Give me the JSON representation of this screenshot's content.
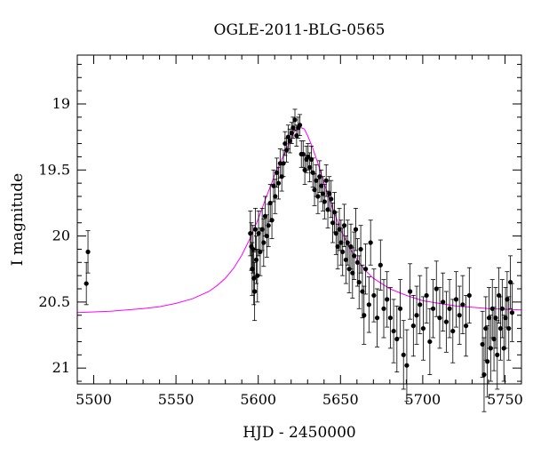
{
  "chart_data": {
    "type": "scatter",
    "title": "OGLE-2011-BLG-0565",
    "xlabel": "HJD - 2450000",
    "ylabel": "I magnitude",
    "xlim": [
      5490,
      5760
    ],
    "ylim": [
      21.12,
      18.63
    ],
    "y_inverted": true,
    "x_major_ticks": [
      5500,
      5550,
      5600,
      5650,
      5700,
      5750
    ],
    "y_major_ticks": [
      19,
      19.5,
      20,
      20.5,
      21
    ],
    "x_tick_labels": [
      "5500",
      "5550",
      "5600",
      "5650",
      "5700",
      "5750"
    ],
    "y_tick_labels": [
      "19",
      "19.5",
      "20",
      "20.5",
      "21"
    ],
    "grid": false,
    "series": [
      {
        "kind": "points_with_errorbars",
        "color": "#000000",
        "points": [
          [
            5495.5,
            20.36,
            0.16
          ],
          [
            5496.5,
            20.12,
            0.16
          ],
          [
            5595.2,
            19.98,
            0.17
          ],
          [
            5595.8,
            20.08,
            0.18
          ],
          [
            5596.3,
            20.25,
            0.2
          ],
          [
            5596.8,
            20.1,
            0.18
          ],
          [
            5597.3,
            20.32,
            0.2
          ],
          [
            5597.8,
            20.42,
            0.22
          ],
          [
            5598.3,
            19.95,
            0.16
          ],
          [
            5598.8,
            20.18,
            0.18
          ],
          [
            5599.5,
            20.3,
            0.2
          ],
          [
            5600.2,
            19.98,
            0.17
          ],
          [
            5601.2,
            20.12,
            0.18
          ],
          [
            5602.4,
            19.95,
            0.16
          ],
          [
            5603.3,
            20.05,
            0.18
          ],
          [
            5604.2,
            19.85,
            0.15
          ],
          [
            5605.2,
            20.0,
            0.16
          ],
          [
            5606.2,
            19.92,
            0.16
          ],
          [
            5607.3,
            19.75,
            0.14
          ],
          [
            5608.3,
            19.88,
            0.14
          ],
          [
            5609.3,
            19.62,
            0.12
          ],
          [
            5610.3,
            19.7,
            0.13
          ],
          [
            5611.3,
            19.52,
            0.11
          ],
          [
            5612.3,
            19.6,
            0.12
          ],
          [
            5613.3,
            19.45,
            0.11
          ],
          [
            5614.3,
            19.55,
            0.11
          ],
          [
            5615.3,
            19.45,
            0.1
          ],
          [
            5616.3,
            19.3,
            0.09
          ],
          [
            5617.2,
            19.35,
            0.09
          ],
          [
            5618.2,
            19.25,
            0.09
          ],
          [
            5619.2,
            19.28,
            0.09
          ],
          [
            5620.3,
            19.22,
            0.08
          ],
          [
            5621.2,
            19.18,
            0.08
          ],
          [
            5622.3,
            19.12,
            0.08
          ],
          [
            5623.3,
            19.24,
            0.08
          ],
          [
            5624.3,
            19.18,
            0.08
          ],
          [
            5625.3,
            19.16,
            0.08
          ],
          [
            5626.2,
            19.38,
            0.1
          ],
          [
            5627.3,
            19.38,
            0.1
          ],
          [
            5628.3,
            19.5,
            0.11
          ],
          [
            5629.3,
            19.42,
            0.1
          ],
          [
            5630.3,
            19.4,
            0.1
          ],
          [
            5631.3,
            19.48,
            0.11
          ],
          [
            5632.3,
            19.42,
            0.1
          ],
          [
            5633.2,
            19.52,
            0.11
          ],
          [
            5634.2,
            19.65,
            0.12
          ],
          [
            5635.2,
            19.58,
            0.12
          ],
          [
            5636.3,
            19.7,
            0.13
          ],
          [
            5637.3,
            19.55,
            0.12
          ],
          [
            5638.3,
            19.62,
            0.12
          ],
          [
            5639.3,
            19.68,
            0.13
          ],
          [
            5640.3,
            19.74,
            0.13
          ],
          [
            5641.3,
            19.58,
            0.12
          ],
          [
            5642.3,
            19.8,
            0.14
          ],
          [
            5643.2,
            19.68,
            0.13
          ],
          [
            5644.3,
            19.72,
            0.14
          ],
          [
            5645.3,
            19.9,
            0.15
          ],
          [
            5646.3,
            19.82,
            0.15
          ],
          [
            5647.3,
            19.98,
            0.16
          ],
          [
            5648.3,
            20.08,
            0.17
          ],
          [
            5649.3,
            19.95,
            0.16
          ],
          [
            5650.3,
            20.05,
            0.17
          ],
          [
            5651.3,
            20.12,
            0.18
          ],
          [
            5652.3,
            19.92,
            0.16
          ],
          [
            5653.3,
            20.18,
            0.18
          ],
          [
            5654.3,
            20.05,
            0.17
          ],
          [
            5655.3,
            20.25,
            0.18
          ],
          [
            5656.3,
            20.08,
            0.17
          ],
          [
            5657.3,
            20.28,
            0.19
          ],
          [
            5658.3,
            20.15,
            0.18
          ],
          [
            5659.3,
            19.95,
            0.16
          ],
          [
            5660.3,
            20.2,
            0.18
          ],
          [
            5661.3,
            20.35,
            0.2
          ],
          [
            5662.3,
            20.1,
            0.18
          ],
          [
            5663.3,
            20.42,
            0.2
          ],
          [
            5664.3,
            20.6,
            0.22
          ],
          [
            5665.3,
            20.25,
            0.19
          ],
          [
            5667.3,
            20.52,
            0.21
          ],
          [
            5668.3,
            20.05,
            0.17
          ],
          [
            5670.3,
            20.45,
            0.2
          ],
          [
            5672.3,
            20.62,
            0.22
          ],
          [
            5674.3,
            20.22,
            0.19
          ],
          [
            5676.3,
            20.55,
            0.22
          ],
          [
            5678.3,
            20.48,
            0.21
          ],
          [
            5680.3,
            20.62,
            0.23
          ],
          [
            5682.3,
            20.72,
            0.24
          ],
          [
            5684.3,
            20.78,
            0.25
          ],
          [
            5686.3,
            20.55,
            0.22
          ],
          [
            5688.3,
            20.9,
            0.26
          ],
          [
            5690.3,
            20.98,
            0.27
          ],
          [
            5692.3,
            20.42,
            0.21
          ],
          [
            5694.3,
            20.68,
            0.23
          ],
          [
            5696.3,
            20.6,
            0.22
          ],
          [
            5698.3,
            20.52,
            0.22
          ],
          [
            5700.3,
            20.7,
            0.24
          ],
          [
            5702.3,
            20.45,
            0.21
          ],
          [
            5704.3,
            20.8,
            0.25
          ],
          [
            5706.3,
            20.55,
            0.22
          ],
          [
            5708.3,
            20.4,
            0.21
          ],
          [
            5710.3,
            20.62,
            0.23
          ],
          [
            5712.3,
            20.5,
            0.22
          ],
          [
            5714.3,
            20.65,
            0.23
          ],
          [
            5716.3,
            20.55,
            0.22
          ],
          [
            5718.3,
            20.72,
            0.24
          ],
          [
            5720.3,
            20.48,
            0.21
          ],
          [
            5722.3,
            20.6,
            0.22
          ],
          [
            5724.3,
            20.52,
            0.22
          ],
          [
            5726.3,
            20.68,
            0.23
          ],
          [
            5728.3,
            20.45,
            0.21
          ],
          [
            5736.3,
            20.82,
            0.25
          ],
          [
            5737.3,
            21.05,
            0.28
          ],
          [
            5738.3,
            20.7,
            0.24
          ],
          [
            5739.3,
            20.95,
            0.27
          ],
          [
            5740.3,
            20.62,
            0.23
          ],
          [
            5741.3,
            20.85,
            0.25
          ],
          [
            5742.3,
            20.55,
            0.22
          ],
          [
            5743.3,
            20.78,
            0.24
          ],
          [
            5744.3,
            20.62,
            0.23
          ],
          [
            5745.3,
            20.9,
            0.26
          ],
          [
            5746.3,
            20.45,
            0.21
          ],
          [
            5747.3,
            20.7,
            0.24
          ],
          [
            5748.3,
            20.55,
            0.22
          ],
          [
            5749.3,
            20.85,
            0.25
          ],
          [
            5750.3,
            20.62,
            0.23
          ],
          [
            5751.3,
            20.48,
            0.21
          ],
          [
            5752.3,
            20.7,
            0.24
          ],
          [
            5753.3,
            20.35,
            0.2
          ],
          [
            5754.3,
            20.58,
            0.22
          ]
        ]
      },
      {
        "kind": "model_curve",
        "color": "#ff00ff",
        "x": [
          5490,
          5500,
          5510,
          5520,
          5530,
          5540,
          5550,
          5560,
          5570,
          5575,
          5580,
          5585,
          5590,
          5595,
          5600,
          5605,
          5610,
          5615,
          5618,
          5620,
          5622,
          5624,
          5626,
          5628,
          5630,
          5633,
          5636,
          5640,
          5645,
          5650,
          5655,
          5660,
          5665,
          5670,
          5680,
          5690,
          5700,
          5710,
          5720,
          5730,
          5740,
          5750,
          5760
        ],
        "y": [
          20.58,
          20.575,
          20.57,
          20.56,
          20.55,
          20.535,
          20.51,
          20.475,
          20.42,
          20.375,
          20.32,
          20.245,
          20.145,
          20.02,
          19.87,
          19.7,
          19.54,
          19.4,
          19.32,
          19.26,
          19.21,
          19.185,
          19.18,
          19.19,
          19.24,
          19.33,
          19.44,
          19.6,
          19.78,
          19.95,
          20.08,
          20.18,
          20.26,
          20.32,
          20.4,
          20.45,
          20.49,
          20.51,
          20.53,
          20.54,
          20.55,
          20.555,
          20.56
        ]
      }
    ]
  }
}
